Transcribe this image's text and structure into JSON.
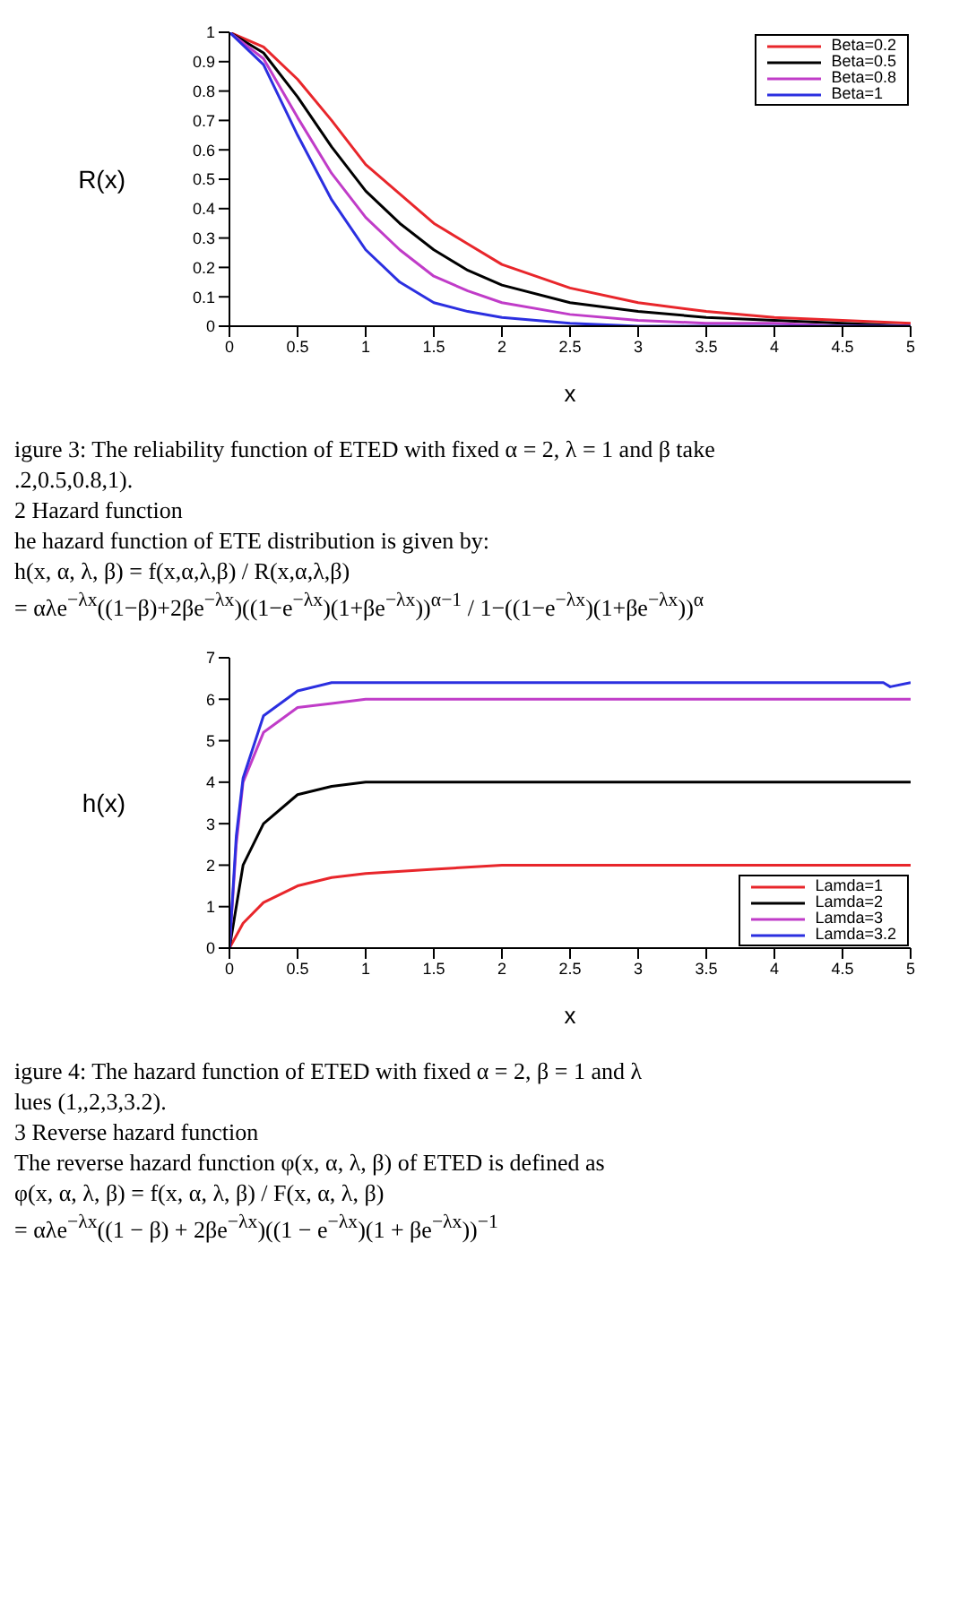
{
  "chart_data": [
    {
      "type": "line",
      "xlabel": "x",
      "ylabel": "R(x)",
      "xlim": [
        0,
        5
      ],
      "xticks": [
        0,
        0.5,
        1,
        1.5,
        2,
        2.5,
        3,
        3.5,
        4,
        4.5,
        5
      ],
      "ylim": [
        0,
        1
      ],
      "yticks": [
        0,
        0.1,
        0.2,
        0.3,
        0.4,
        0.5,
        0.6,
        0.7,
        0.8,
        0.9,
        1
      ],
      "legend": "top right",
      "marker": "none",
      "line_style": "solid",
      "x": [
        0,
        0.25,
        0.5,
        0.75,
        1,
        1.25,
        1.5,
        1.75,
        2,
        2.5,
        3,
        3.5,
        4,
        4.5,
        5
      ],
      "series": [
        {
          "name": "Beta=0.2",
          "color": "#e8262b",
          "values": [
            1,
            0.95,
            0.84,
            0.7,
            0.55,
            0.45,
            0.35,
            0.28,
            0.21,
            0.13,
            0.08,
            0.05,
            0.03,
            0.02,
            0.01
          ]
        },
        {
          "name": "Beta=0.5",
          "color": "#000000",
          "values": [
            1,
            0.93,
            0.78,
            0.61,
            0.46,
            0.35,
            0.26,
            0.19,
            0.14,
            0.08,
            0.05,
            0.03,
            0.02,
            0.01,
            0
          ]
        },
        {
          "name": "Beta=0.8",
          "color": "#c03cc8",
          "values": [
            1,
            0.91,
            0.71,
            0.52,
            0.37,
            0.26,
            0.17,
            0.12,
            0.08,
            0.04,
            0.02,
            0.01,
            0.01,
            0,
            0
          ]
        },
        {
          "name": "Beta=1",
          "color": "#2b2fe0",
          "values": [
            1,
            0.89,
            0.65,
            0.43,
            0.26,
            0.15,
            0.08,
            0.05,
            0.03,
            0.01,
            0,
            0,
            0,
            0,
            0
          ]
        }
      ],
      "annotations": [
        "igure 3: The reliability function of ETED with fixed α = 2, λ = 1 and β take",
        ".2,0.5,0.8,1).",
        "2 Hazard function",
        "he hazard function of ETE distribution is given by:",
        "h(x, α, λ, β) = f(x,α,λ,β) / R(x,α,λ,β)",
        "= αλe$^{−λx}$((1−β)+2βe$^{−λx}$)((1−e$^{−λx}$)(1+βe$^{−λx}$))$^{α−1}$ / 1−((1−e$^{−λx}$)(1+βe$^{−λx}$))$^{α}$"
      ]
    },
    {
      "type": "line",
      "xlabel": "x",
      "ylabel": "h(x)",
      "xlim": [
        0,
        5
      ],
      "xticks": [
        0,
        0.5,
        1,
        1.5,
        2,
        2.5,
        3,
        3.5,
        4,
        4.5,
        5
      ],
      "ylim": [
        0,
        7
      ],
      "yticks": [
        0,
        1,
        2,
        3,
        4,
        5,
        6,
        7
      ],
      "legend": "bottom right",
      "marker": "none",
      "line_style": "solid",
      "series": [
        {
          "name": "Lamda=1",
          "color": "#e8262b",
          "x": [
            0,
            0.1,
            0.25,
            0.5,
            0.75,
            1,
            1.5,
            2,
            3,
            4,
            5
          ],
          "values": [
            0,
            0.6,
            1.1,
            1.5,
            1.7,
            1.8,
            1.9,
            2,
            2,
            2,
            2
          ]
        },
        {
          "name": "Lamda=2",
          "color": "#000000",
          "x": [
            0,
            0.1,
            0.25,
            0.5,
            0.75,
            1,
            1.5,
            3,
            5
          ],
          "values": [
            0,
            2,
            3,
            3.7,
            3.9,
            4,
            4,
            4,
            4
          ]
        },
        {
          "name": "Lamda=3",
          "color": "#c03cc8",
          "x": [
            0,
            0.05,
            0.1,
            0.25,
            0.5,
            0.75,
            1,
            3,
            5
          ],
          "values": [
            0,
            2.5,
            4,
            5.2,
            5.8,
            5.9,
            6,
            6,
            6
          ]
        },
        {
          "name": "Lamda=3.2",
          "color": "#2b2fe0",
          "x": [
            0,
            0.05,
            0.1,
            0.25,
            0.5,
            0.75,
            1,
            3,
            4.8,
            4.85,
            5
          ],
          "values": [
            0,
            2.7,
            4.1,
            5.6,
            6.2,
            6.4,
            6.4,
            6.4,
            6.4,
            6.3,
            6.4
          ]
        }
      ],
      "annotations": [
        "igure 4: The hazard function of ETED with fixed α = 2, β = 1 and λ",
        "lues (1,,2,3,3.2).",
        "3 Reverse hazard function",
        "The reverse hazard function φ(x, α, λ, β) of ETED is defined as",
        "φ(x, α, λ, β) = f(x, α, λ, β) / F(x, α, λ, β)",
        "= αλe$^{−λx}$((1 − β) + 2βe$^{−λx}$)((1 − e$^{−λx}$)(1 + βe$^{−λx}$))$^{−1}$"
      ]
    }
  ]
}
